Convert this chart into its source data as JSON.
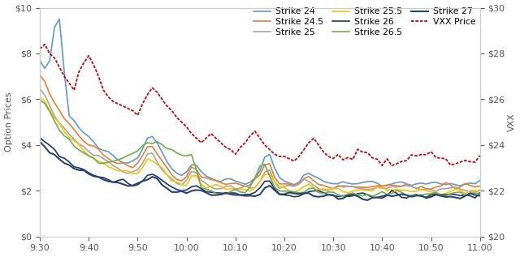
{
  "ylabel_left": "Option Prices",
  "ylabel_right": "VXX",
  "ylim_left": [
    0,
    10
  ],
  "ylim_right": [
    20,
    30
  ],
  "yticks_left": [
    0,
    2,
    4,
    6,
    8,
    10
  ],
  "yticks_right": [
    20,
    22,
    24,
    26,
    28,
    30
  ],
  "xtick_labels": [
    "9:30",
    "9:40",
    "9:50",
    "10:00",
    "10:10",
    "10:20",
    "10:30",
    "10:40",
    "10:50",
    "11:00"
  ],
  "background_color": "#ffffff",
  "series_colors": {
    "strike24": "#5b9bd5",
    "strike245": "#ed7d31",
    "strike25": "#a5a5a5",
    "strike255": "#ffc000",
    "strike26": "#203864",
    "strike265": "#70ad47",
    "strike27": "#264478",
    "vxx": "#cc0000"
  },
  "n_points": 91
}
